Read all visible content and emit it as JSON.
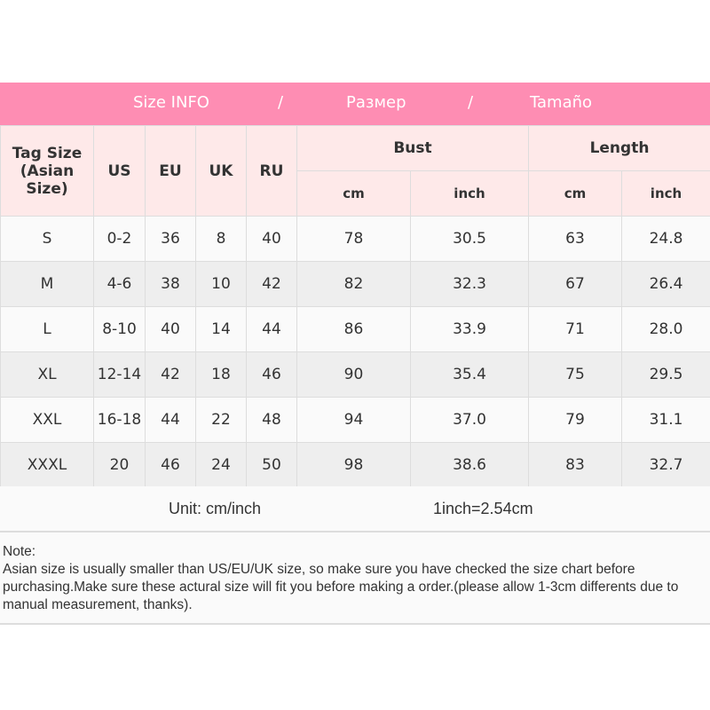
{
  "banner": {
    "parts": [
      "Size INFO",
      "/",
      "Размер",
      "/",
      "Tamaño"
    ]
  },
  "colors": {
    "banner": "#fe8db3",
    "header_bg": "#fee9e9"
  },
  "table": {
    "headers": {
      "tag": "Tag Size (Asian Size)",
      "us": "US",
      "eu": "EU",
      "uk": "UK",
      "ru": "RU",
      "bust": "Bust",
      "length": "Length",
      "cm": "cm",
      "inch": "inch"
    },
    "rows": [
      [
        "S",
        "0-2",
        "36",
        "8",
        "40",
        "78",
        "30.5",
        "63",
        "24.8"
      ],
      [
        "M",
        "4-6",
        "38",
        "10",
        "42",
        "82",
        "32.3",
        "67",
        "26.4"
      ],
      [
        "L",
        "8-10",
        "40",
        "14",
        "44",
        "86",
        "33.9",
        "71",
        "28.0"
      ],
      [
        "XL",
        "12-14",
        "42",
        "18",
        "46",
        "90",
        "35.4",
        "75",
        "29.5"
      ],
      [
        "XXL",
        "16-18",
        "44",
        "22",
        "48",
        "94",
        "37.0",
        "79",
        "31.1"
      ],
      [
        "XXXL",
        "20",
        "46",
        "24",
        "50",
        "98",
        "38.6",
        "83",
        "32.7"
      ]
    ]
  },
  "unit": {
    "label": "Unit: cm/inch",
    "conversion": "1inch=2.54cm"
  },
  "note": {
    "title": "Note:",
    "text": "Asian size is usually smaller than US/EU/UK size, so make sure you have checked the size chart before purchasing.Make sure these actural size will fit you before making a order.(please allow 1-3cm differents due to manual measurement, thanks)."
  }
}
